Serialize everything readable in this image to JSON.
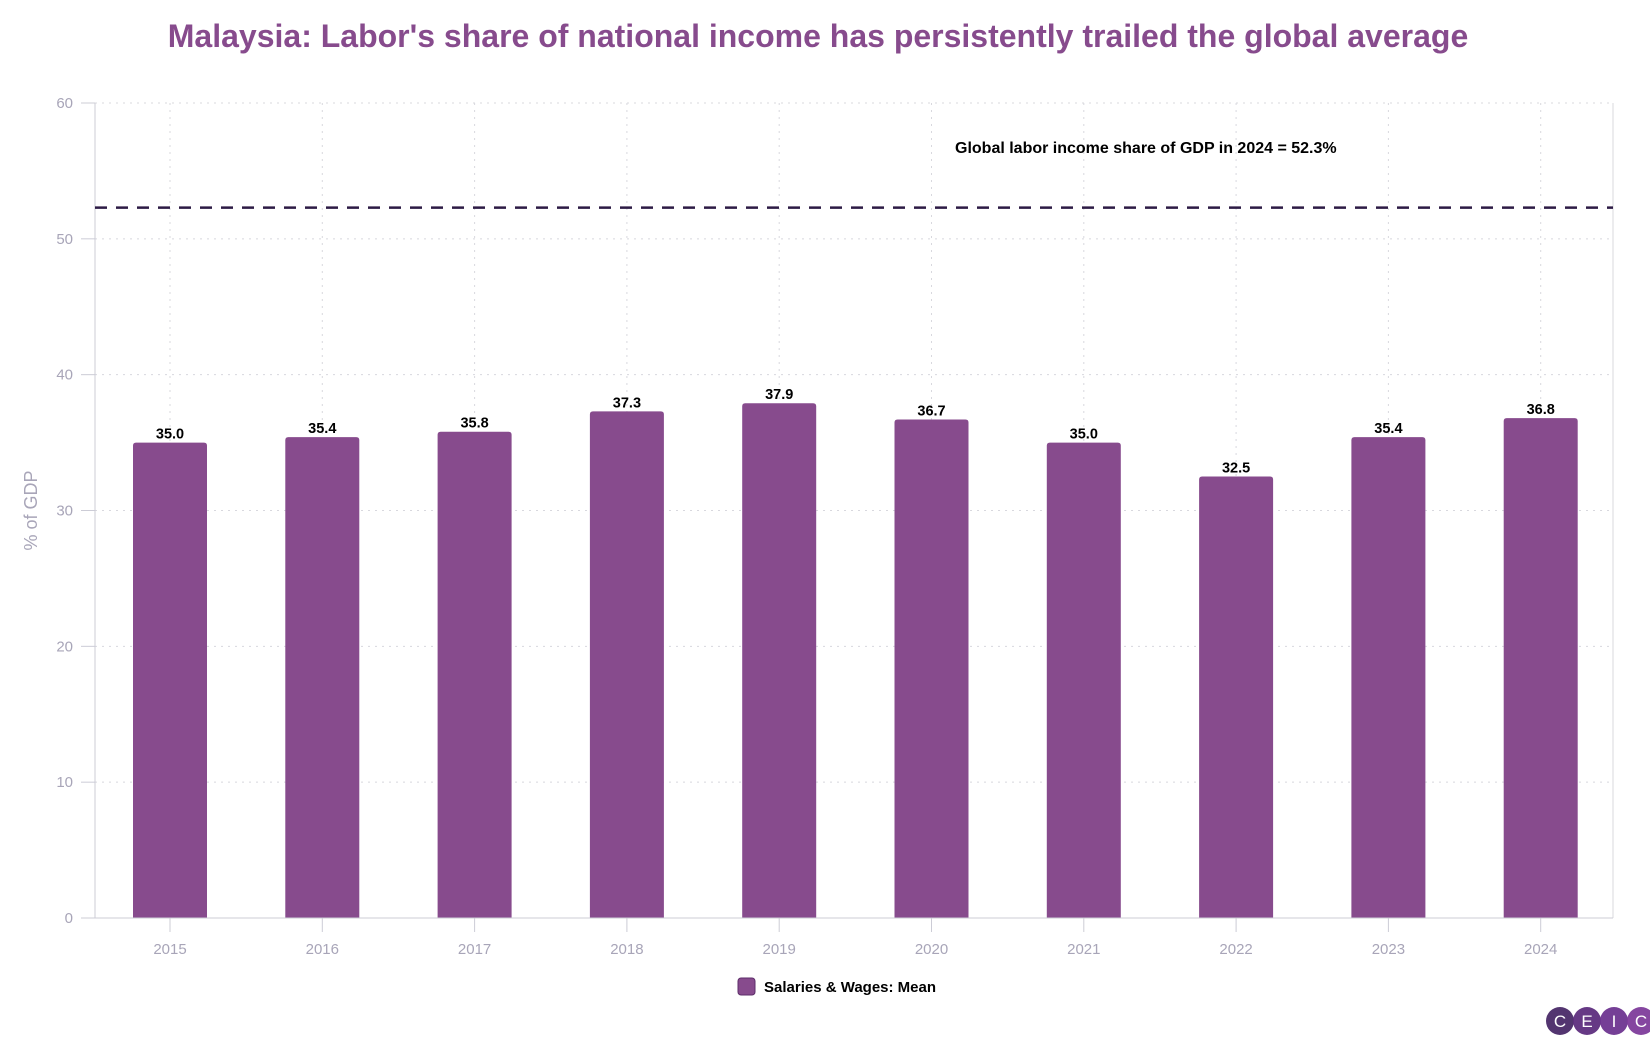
{
  "chart_data": {
    "type": "bar",
    "title": "Malaysia: Labor's share of national income has persistently trailed the global average",
    "categories": [
      "2015",
      "2016",
      "2017",
      "2018",
      "2019",
      "2020",
      "2021",
      "2022",
      "2023",
      "2024"
    ],
    "series": [
      {
        "name": "Salaries & Wages: Mean",
        "values": [
          35.0,
          35.4,
          35.8,
          37.3,
          37.9,
          36.7,
          35.0,
          32.5,
          35.4,
          36.8
        ],
        "color": "#874b8d"
      }
    ],
    "xlabel": "",
    "ylabel": "% of GDP",
    "ylim": [
      0,
      60
    ],
    "yticks": [
      0,
      10,
      20,
      30,
      40,
      50,
      60
    ],
    "grid": true,
    "legend": "bottom-center",
    "reference_line": {
      "value": 52.3,
      "style": "dashed",
      "color": "#2d1b45",
      "label": "Global labor income share of GDP in 2024 = 52.3%"
    }
  },
  "logo": {
    "text": [
      "C",
      "E",
      "I",
      "C"
    ],
    "colors": [
      "#4a2a68",
      "#5e2e7e",
      "#6e3590",
      "#7e3c9b"
    ]
  }
}
